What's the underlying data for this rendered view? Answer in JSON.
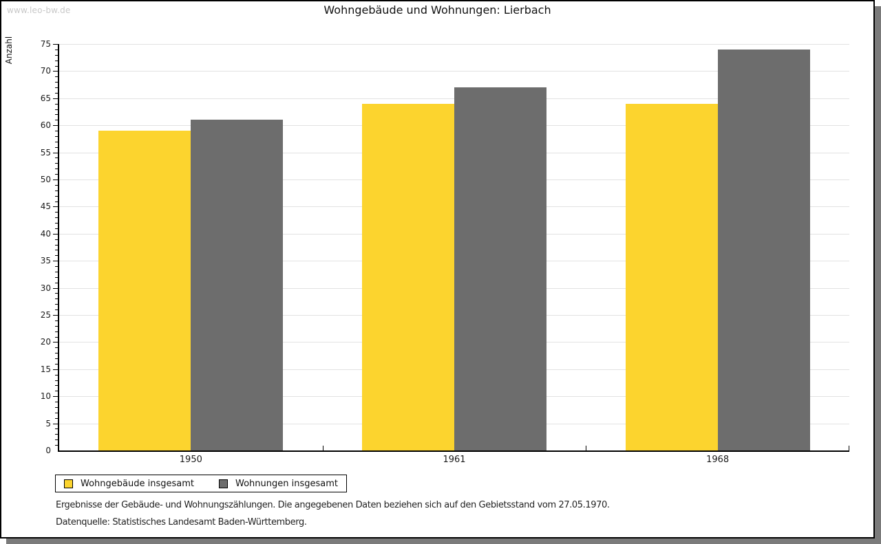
{
  "watermark": "www.leo-bw.de",
  "title": "Wohngebäude und Wohnungen: Lierbach",
  "chart_data": {
    "type": "bar",
    "categories": [
      "1950",
      "1961",
      "1968"
    ],
    "series": [
      {
        "name": "Wohngebäude insgesamt",
        "color": "#fcd42e",
        "values": [
          59,
          64,
          64
        ]
      },
      {
        "name": "Wohnungen insgesamt",
        "color": "#6d6d6d",
        "values": [
          61,
          67,
          74
        ]
      }
    ],
    "title": "Wohngebäude und Wohnungen: Lierbach",
    "xlabel": "",
    "ylabel": "Anzahl",
    "ylim": [
      0,
      75
    ],
    "ytick_major": 5,
    "ytick_minor": 1,
    "grid": true,
    "legend_position": "bottom-left"
  },
  "footnotes": {
    "line1": "Ergebnisse der Gebäude- und Wohnungszählungen. Die angegebenen Daten beziehen sich auf den Gebietsstand vom 27.05.1970.",
    "line2": "Datenquelle: Statistisches Landesamt Baden-Württemberg."
  },
  "colors": {
    "bar_yellow": "#fcd42e",
    "bar_gray": "#6d6d6d",
    "grid": "#e2e2e2",
    "axis": "#000000",
    "shadow": "#7b7b7b",
    "watermark": "#c8c8c8"
  }
}
